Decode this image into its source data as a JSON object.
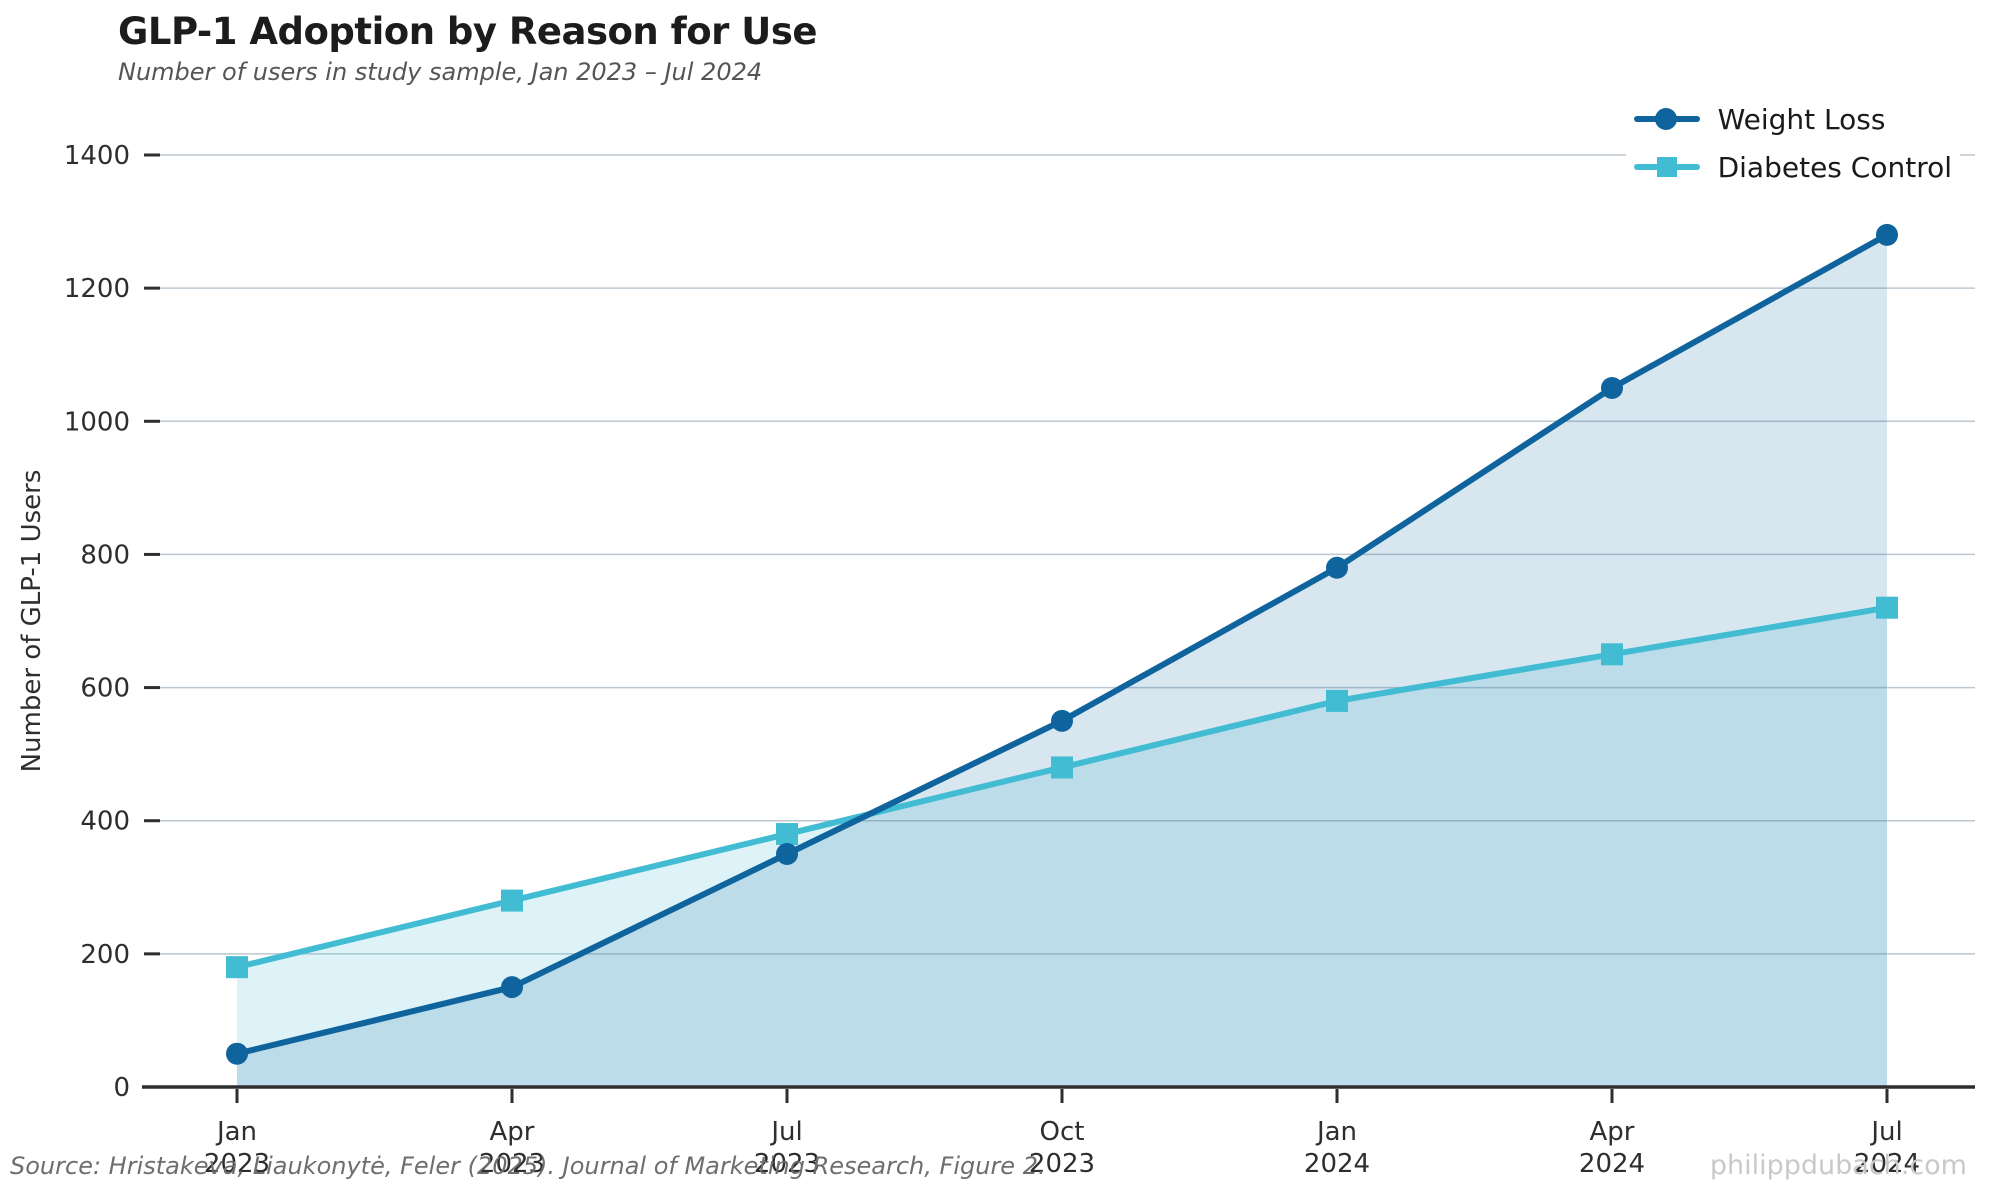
{
  "chart_data": {
    "type": "line",
    "title": "GLP-1 Adoption by Reason for Use",
    "subtitle": "Number of users in study sample, Jan 2023 – Jul 2024",
    "categories": [
      "Jan 2023",
      "Apr 2023",
      "Jul 2023",
      "Oct 2023",
      "Jan 2024",
      "Apr 2024",
      "Jul 2024"
    ],
    "series": [
      {
        "name": "Weight Loss",
        "marker": "circle",
        "color": "#0f649e",
        "fill": "rgba(15,100,158,0.16)",
        "values": [
          50,
          150,
          350,
          550,
          780,
          1050,
          1280
        ]
      },
      {
        "name": "Diabetes Control",
        "marker": "square",
        "color": "#41bcd3",
        "fill": "rgba(65,188,211,0.18)",
        "values": [
          180,
          280,
          380,
          480,
          580,
          650,
          720
        ]
      }
    ],
    "xlabel": "",
    "ylabel": "Number of GLP-1 Users",
    "ylim": [
      0,
      1400
    ],
    "yticks": [
      0,
      200,
      400,
      600,
      800,
      1000,
      1200,
      1400
    ],
    "grid": true,
    "legend_position": "top-right",
    "axis_color": "#2e2e2e",
    "gridline_color": "#bcc7d0",
    "tick_label_color": "#2e2e2e"
  },
  "footer": {
    "source": "Source: Hristakeva, Liaukonytė, Feler (2025). Journal of Marketing Research, Figure 2.",
    "watermark": "philippdubach.com"
  }
}
